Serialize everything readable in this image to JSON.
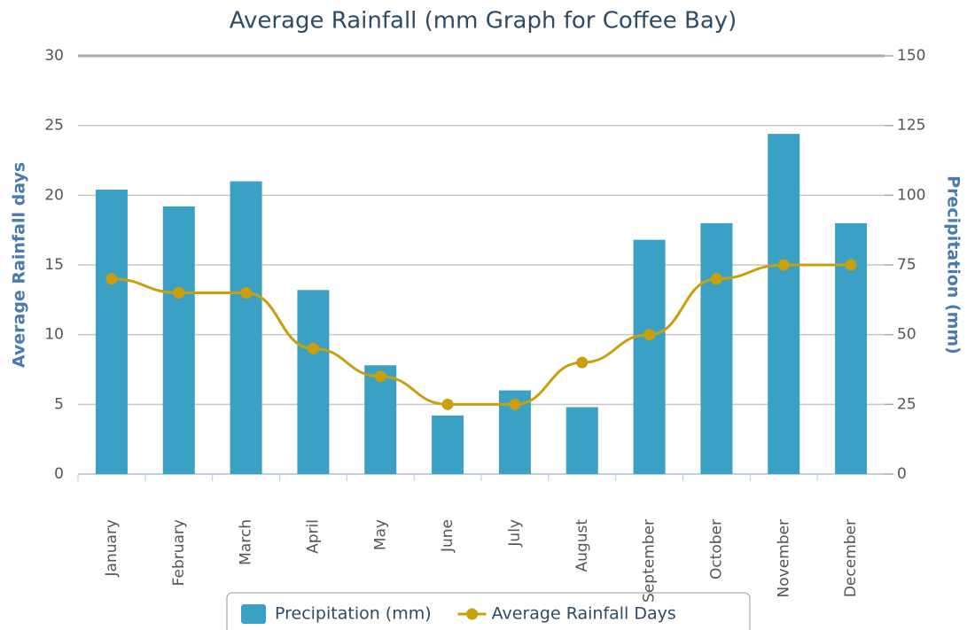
{
  "chart_data": {
    "type": "bar",
    "title": "Average Rainfall (mm Graph for Coffee Bay)",
    "ylabel": "Average Rainfall days",
    "y2label": "Precipitation (mm)",
    "categories": [
      "January",
      "February",
      "March",
      "April",
      "May",
      "June",
      "July",
      "August",
      "September",
      "October",
      "November",
      "December"
    ],
    "series": [
      {
        "name": "Precipitation (mm)",
        "type": "bar",
        "axis": "y2",
        "color": "#3aa0c4",
        "values": [
          102,
          96,
          105,
          66,
          39,
          21,
          30,
          24,
          84,
          90,
          122,
          90
        ]
      },
      {
        "name": "Average Rainfall Days",
        "type": "line",
        "color": "#c9a00c",
        "values": [
          14,
          13,
          13,
          9,
          7,
          5,
          5,
          8,
          10,
          14,
          15,
          15
        ]
      }
    ],
    "ylim": [
      0,
      30
    ],
    "yticks": [
      0,
      5,
      10,
      15,
      20,
      25,
      30
    ],
    "y2lim": [
      0,
      150
    ],
    "y2ticks": [
      0,
      25,
      50,
      75,
      100,
      125,
      150
    ],
    "grid": true
  }
}
